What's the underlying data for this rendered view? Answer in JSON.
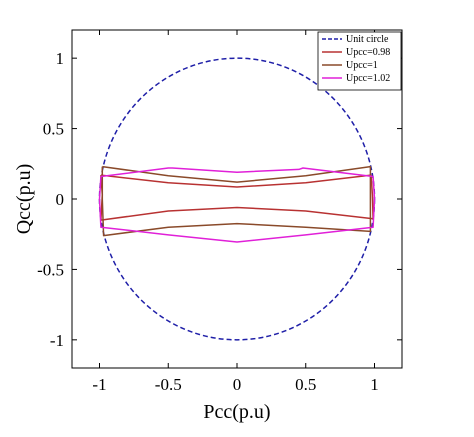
{
  "chart_data": {
    "type": "line",
    "title": "",
    "xlabel": "Pcc(p.u)",
    "ylabel": "Qcc(p.u)",
    "xlim": [
      -1.2,
      1.2
    ],
    "ylim": [
      -1.2,
      1.2
    ],
    "xticks": [
      -1,
      -0.5,
      0,
      0.5,
      1
    ],
    "xtick_labels": [
      "-1",
      "-0.5",
      "0",
      "0.5",
      "1"
    ],
    "yticks": [
      -1,
      -0.5,
      0,
      0.5,
      1
    ],
    "ytick_labels": [
      "-1",
      "-0.5",
      "0",
      "0.5",
      "1"
    ],
    "grid": false,
    "legend_position": "top-right",
    "series": [
      {
        "name": "Unit circle",
        "color": "#1f1fa8",
        "dash": "dashed",
        "kind": "circle",
        "center": [
          0,
          0
        ],
        "radius": 1
      },
      {
        "name": "Upcc=0.98",
        "color": "#b83232",
        "dash": "solid",
        "loops": [
          [
            [
              -0.99,
              0.17
            ],
            [
              -0.5,
              0.115
            ],
            [
              0,
              0.085
            ],
            [
              0.5,
              0.115
            ],
            [
              0.975,
              0.17
            ],
            [
              0.985,
              0.03
            ],
            [
              0.99,
              -0.14
            ],
            [
              0.5,
              -0.085
            ],
            [
              0,
              -0.06
            ],
            [
              -0.5,
              -0.085
            ],
            [
              -0.99,
              -0.15
            ],
            [
              -0.98,
              0.03
            ],
            [
              -0.99,
              0.17
            ]
          ]
        ]
      },
      {
        "name": "Upcc=1",
        "color": "#8a4a2a",
        "dash": "solid",
        "loops": [
          [
            [
              -0.98,
              0.23
            ],
            [
              -0.5,
              0.165
            ],
            [
              0,
              0.12
            ],
            [
              0.5,
              0.165
            ],
            [
              0.97,
              0.23
            ],
            [
              0.97,
              0.01
            ],
            [
              0.97,
              -0.23
            ],
            [
              0.5,
              -0.2
            ],
            [
              0,
              -0.175
            ],
            [
              -0.5,
              -0.2
            ],
            [
              -0.97,
              -0.26
            ],
            [
              -0.98,
              0.0
            ],
            [
              -0.98,
              0.23
            ]
          ]
        ]
      },
      {
        "name": "Upcc=1.02",
        "color": "#e020d8",
        "dash": "solid",
        "loops": [
          [
            [
              -0.99,
              0.16
            ],
            [
              -0.5,
              0.22
            ],
            [
              -0.47,
              0.22
            ],
            [
              0,
              0.19
            ],
            [
              0.45,
              0.21
            ],
            [
              0.48,
              0.22
            ],
            [
              0.99,
              0.16
            ],
            [
              1.0,
              0.0
            ],
            [
              0.99,
              -0.2
            ],
            [
              0.5,
              -0.255
            ],
            [
              0,
              -0.305
            ],
            [
              -0.5,
              -0.255
            ],
            [
              -0.99,
              -0.2
            ],
            [
              -1.0,
              0.0
            ],
            [
              -0.99,
              0.16
            ]
          ]
        ]
      }
    ]
  }
}
